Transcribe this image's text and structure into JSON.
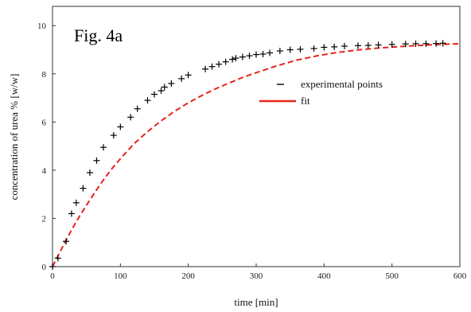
{
  "chart_data": {
    "type": "scatter",
    "title": "Fig. 4a",
    "xlabel": "time [min]",
    "ylabel": "concentration of urea % [w/w]",
    "xlim": [
      0,
      600
    ],
    "ylim": [
      0,
      10.8
    ],
    "xticks": [
      0,
      100,
      200,
      300,
      400,
      500,
      600
    ],
    "yticks": [
      0,
      2,
      4,
      6,
      8,
      10
    ],
    "grid": false,
    "legend_position": "center-right",
    "series": [
      {
        "name": "experimental points",
        "style": "marker",
        "color": "#000000",
        "x": [
          0,
          8,
          20,
          28,
          35,
          45,
          55,
          65,
          75,
          90,
          100,
          115,
          125,
          140,
          150,
          160,
          165,
          175,
          190,
          200,
          225,
          235,
          245,
          255,
          265,
          270,
          280,
          290,
          300,
          310,
          320,
          335,
          350,
          365,
          385,
          400,
          415,
          430,
          450,
          465,
          480,
          500,
          520,
          535,
          550,
          565,
          575
        ],
        "y": [
          0,
          0.35,
          1.05,
          2.2,
          2.65,
          3.25,
          3.9,
          4.4,
          4.95,
          5.45,
          5.8,
          6.2,
          6.55,
          6.9,
          7.15,
          7.3,
          7.45,
          7.6,
          7.8,
          7.95,
          8.2,
          8.3,
          8.4,
          8.5,
          8.6,
          8.65,
          8.7,
          8.75,
          8.8,
          8.82,
          8.87,
          8.95,
          9.0,
          9.02,
          9.05,
          9.1,
          9.12,
          9.15,
          9.17,
          9.18,
          9.2,
          9.22,
          9.24,
          9.25,
          9.25,
          9.26,
          9.27
        ]
      },
      {
        "name": "fit",
        "style": "dashed-line",
        "color": "#e8231a",
        "x": [
          0,
          10,
          20,
          30,
          40,
          50,
          60,
          70,
          80,
          90,
          100,
          120,
          140,
          160,
          180,
          200,
          220,
          240,
          260,
          280,
          300,
          330,
          360,
          390,
          420,
          450,
          480,
          510,
          540,
          570,
          600
        ],
        "y": [
          0,
          0.55,
          1.1,
          1.62,
          2.1,
          2.55,
          2.98,
          3.4,
          3.79,
          4.15,
          4.48,
          5.1,
          5.6,
          6.05,
          6.45,
          6.8,
          7.1,
          7.38,
          7.62,
          7.85,
          8.05,
          8.33,
          8.57,
          8.75,
          8.89,
          8.99,
          9.07,
          9.13,
          9.18,
          9.22,
          9.25
        ]
      }
    ]
  }
}
